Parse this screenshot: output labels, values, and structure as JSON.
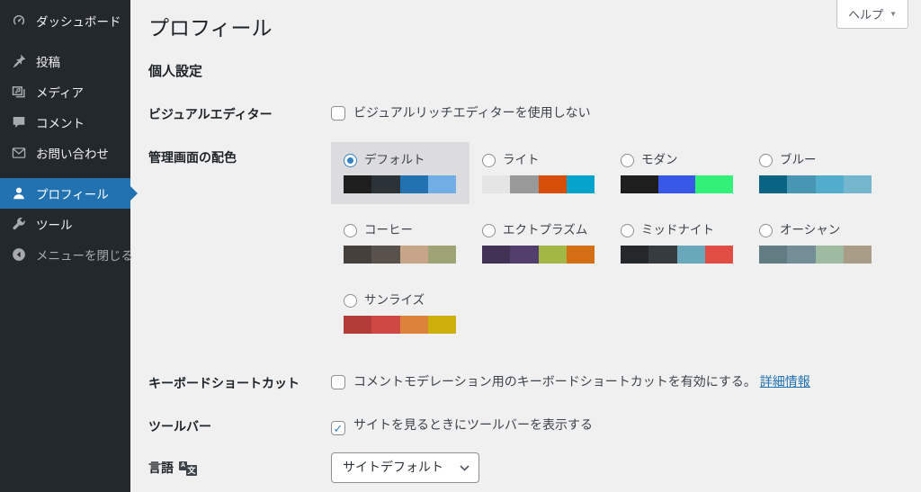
{
  "colors": {
    "accent": "#2271b1",
    "sidebar_bg": "#23282d",
    "page_bg": "#f0f0f1",
    "selected_scheme_bg": "#dcdcde",
    "link": "#2271b1",
    "check": "#3582c4"
  },
  "sidebar": {
    "items": [
      {
        "id": "dashboard",
        "label": "ダッシュボード",
        "icon": "dashboard-icon",
        "separator_before": false,
        "selected": false
      },
      {
        "id": "posts",
        "label": "投稿",
        "icon": "pin-icon",
        "separator_before": true,
        "selected": false
      },
      {
        "id": "media",
        "label": "メディア",
        "icon": "media-icon",
        "separator_before": false,
        "selected": false
      },
      {
        "id": "comments",
        "label": "コメント",
        "icon": "comment-icon",
        "separator_before": false,
        "selected": false
      },
      {
        "id": "contact",
        "label": "お問い合わせ",
        "icon": "mail-icon",
        "separator_before": false,
        "selected": false
      },
      {
        "id": "profile",
        "label": "プロフィール",
        "icon": "user-icon",
        "separator_before": true,
        "selected": true
      },
      {
        "id": "tools",
        "label": "ツール",
        "icon": "wrench-icon",
        "separator_before": false,
        "selected": false
      },
      {
        "id": "collapse-menu",
        "label": "メニューを閉じる",
        "icon": "collapse-icon",
        "separator_before": false,
        "selected": false,
        "dim": true
      }
    ]
  },
  "header": {
    "help_label": "ヘルプ"
  },
  "page": {
    "title": "プロフィール",
    "section_title": "個人設定"
  },
  "form": {
    "visual_editor": {
      "label": "ビジュアルエディター",
      "checkbox_label": "ビジュアルリッチエディターを使用しない",
      "checked": false
    },
    "admin_color": {
      "label": "管理画面の配色",
      "schemes": [
        {
          "id": "default",
          "name": "デフォルト",
          "selected": true,
          "colors": [
            "#1e1e1e",
            "#2c3338",
            "#2271b1",
            "#72aee6"
          ]
        },
        {
          "id": "light",
          "name": "ライト",
          "selected": false,
          "colors": [
            "#e5e5e5",
            "#999999",
            "#d64e07",
            "#04a4cc"
          ]
        },
        {
          "id": "modern",
          "name": "モダン",
          "selected": false,
          "colors": [
            "#1e1e1e",
            "#3858e9",
            "#33f078"
          ]
        },
        {
          "id": "blue",
          "name": "ブルー",
          "selected": false,
          "colors": [
            "#096484",
            "#4796b3",
            "#52accc",
            "#74b6ce"
          ]
        },
        {
          "id": "coffee",
          "name": "コーヒー",
          "selected": false,
          "colors": [
            "#46403c",
            "#59524c",
            "#c7a589",
            "#9ea476"
          ]
        },
        {
          "id": "ectoplasm",
          "name": "エクトプラズム",
          "selected": false,
          "colors": [
            "#413256",
            "#523f6d",
            "#a3b745",
            "#d46f15"
          ]
        },
        {
          "id": "midnight",
          "name": "ミッドナイト",
          "selected": false,
          "colors": [
            "#25282b",
            "#363b3f",
            "#69a8bb",
            "#e14d43"
          ]
        },
        {
          "id": "ocean",
          "name": "オーシャン",
          "selected": false,
          "colors": [
            "#627c83",
            "#738e96",
            "#9ebaa0",
            "#aa9d88"
          ]
        },
        {
          "id": "sunrise",
          "name": "サンライズ",
          "selected": false,
          "colors": [
            "#b43c38",
            "#cf4944",
            "#dd823b",
            "#ccaf0b"
          ]
        }
      ]
    },
    "keyboard_shortcuts": {
      "label": "キーボードショートカット",
      "checkbox_label": "コメントモデレーション用のキーボードショートカットを有効にする。",
      "link_label": "詳細情報",
      "checked": false
    },
    "toolbar": {
      "label": "ツールバー",
      "checkbox_label": "サイトを見るときにツールバーを表示する",
      "checked": true
    },
    "language": {
      "label": "言語",
      "selected_option": "サイトデフォルト"
    }
  }
}
